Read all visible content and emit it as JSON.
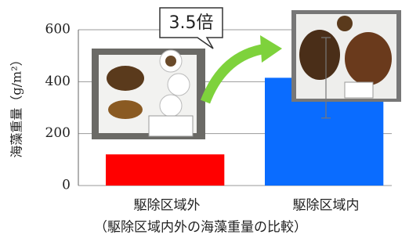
{
  "chart_data": {
    "type": "bar",
    "title": "（駆除区域内外の海藻重量の比較）",
    "y_label": "海藻重量（g/m²）",
    "categories": [
      "駆除区域外",
      "駆除区域内"
    ],
    "values": [
      120,
      415
    ],
    "errors": [
      null,
      155
    ],
    "colors": [
      "#ff0000",
      "#0a6cff"
    ],
    "ylim": [
      0,
      600
    ],
    "yticks": [
      0,
      200,
      400,
      600
    ],
    "grid": true,
    "annotation": "3.5倍"
  }
}
